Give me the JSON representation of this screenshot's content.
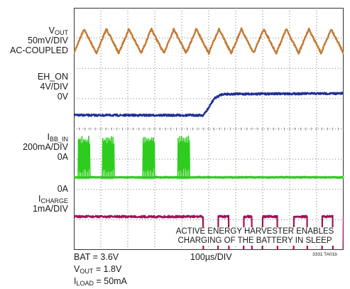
{
  "chart_data": {
    "type": "line",
    "title": "",
    "x_division": "100µs/DIV",
    "grid": {
      "divisions_x": 10,
      "divisions_y": 8,
      "style": "dotted"
    },
    "channels": [
      {
        "id": "vout",
        "name": "V",
        "name_sub": "OUT",
        "scale": "50mV/DIV",
        "coupling": "AC-COUPLED",
        "zero_label": "",
        "color": "#c47a34",
        "waveform": "triangle ripple, ~12 cycles over 10 divisions, peak-to-peak ~0.8 div"
      },
      {
        "id": "eh_on",
        "name": "EH_ON",
        "name_sub": "",
        "scale": "4V/DIV",
        "coupling": "",
        "zero_label": "0V",
        "color": "#1e2f96",
        "waveform": "low (0V) until ~4.8 div, ramps to high ~0.7 div above baseline by ~5.5 div",
        "points": [
          [
            0,
            0
          ],
          [
            4.8,
            0
          ],
          [
            5.0,
            0.25
          ],
          [
            5.2,
            0.55
          ],
          [
            5.5,
            0.7
          ],
          [
            10,
            0.72
          ]
        ]
      },
      {
        "id": "ibb_in",
        "name": "I",
        "name_sub": "BB_IN",
        "scale": "200mA/DIV",
        "coupling": "",
        "zero_label": "0A",
        "color": "#2ecc1e",
        "waveform": "current pulse bursts, 4 bursts of ~1.2 div amplitude",
        "bursts": [
          [
            0.15,
            0.55
          ],
          [
            1.05,
            1.45
          ],
          [
            2.55,
            2.95
          ],
          [
            3.85,
            4.25
          ]
        ]
      },
      {
        "id": "icharge",
        "name": "I",
        "name_sub": "CHARGE",
        "scale": "1mA/DIV",
        "coupling": "",
        "zero_label": "0A",
        "color": "#9c1457",
        "waveform": "0A until ~4.8 div, then rectangular pulses between -1.4 div and 0A",
        "low_intervals": [
          [
            4.8,
            5.35
          ],
          [
            5.75,
            6.3
          ],
          [
            6.6,
            7.0
          ],
          [
            7.55,
            8.15
          ],
          [
            8.65,
            9.2
          ],
          [
            9.6,
            10.0
          ]
        ]
      }
    ],
    "annotation": [
      "ACTIVE ENERGY HARVESTER ENABLES",
      "CHARGING OF THE BATTERY IN SLEEP"
    ],
    "conditions": {
      "bat": "BAT = 3.6V",
      "vout_prefix": "V",
      "vout_sub": "OUT",
      "vout_value": " = 1.8V",
      "iload_prefix": "I",
      "iload_sub": "LOAD",
      "iload_value": " = 50mA"
    },
    "figure_code": "3331 TA01b"
  }
}
